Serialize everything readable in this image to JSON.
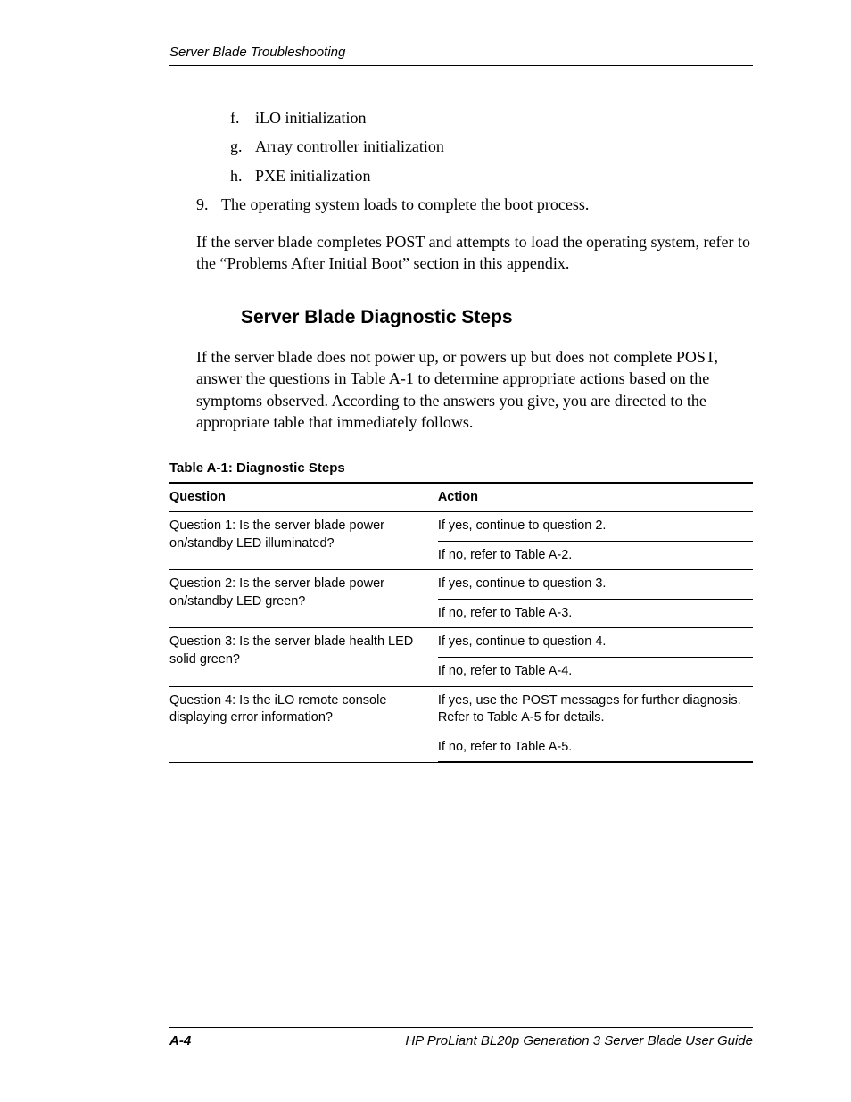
{
  "header": {
    "running_title": "Server Blade Troubleshooting"
  },
  "list": {
    "sub": [
      {
        "letter": "f.",
        "text": "iLO initialization"
      },
      {
        "letter": "g.",
        "text": "Array controller initialization"
      },
      {
        "letter": "h.",
        "text": "PXE initialization"
      }
    ],
    "num": [
      {
        "num": "9.",
        "text": "The operating system loads to complete the boot process."
      }
    ],
    "para": "If the server blade completes POST and attempts to load the operating system, refer to the “Problems After Initial Boot” section in this appendix."
  },
  "section": {
    "heading": "Server Blade Diagnostic Steps",
    "intro": "If the server blade does not power up, or powers up but does not complete POST, answer the questions in Table A-1 to determine appropriate actions based on the symptoms observed. According to the answers you give, you are directed to the appropriate table that immediately follows."
  },
  "table": {
    "title": "Table A-1:  Diagnostic Steps",
    "columns": {
      "c1": "Question",
      "c2": "Action"
    },
    "rows": [
      {
        "q": "Question 1: Is the server blade power on/standby LED illuminated?",
        "a1": "If yes, continue to question 2.",
        "a2": "If no, refer to Table A-2."
      },
      {
        "q": "Question 2: Is the server blade power on/standby LED green?",
        "a1": "If yes, continue to question 3.",
        "a2": "If no, refer to Table A-3."
      },
      {
        "q": "Question 3: Is the server blade health LED solid green?",
        "a1": "If yes, continue to question 4.",
        "a2": "If no, refer to Table A-4."
      },
      {
        "q": "Question 4: Is the iLO remote console displaying error information?",
        "a1": "If yes, use the POST messages for further diagnosis. Refer to Table A-5 for details.",
        "a2": "If no, refer to Table A-5."
      }
    ]
  },
  "footer": {
    "page": "A-4",
    "doc": "HP ProLiant BL20p Generation 3 Server Blade User Guide"
  }
}
